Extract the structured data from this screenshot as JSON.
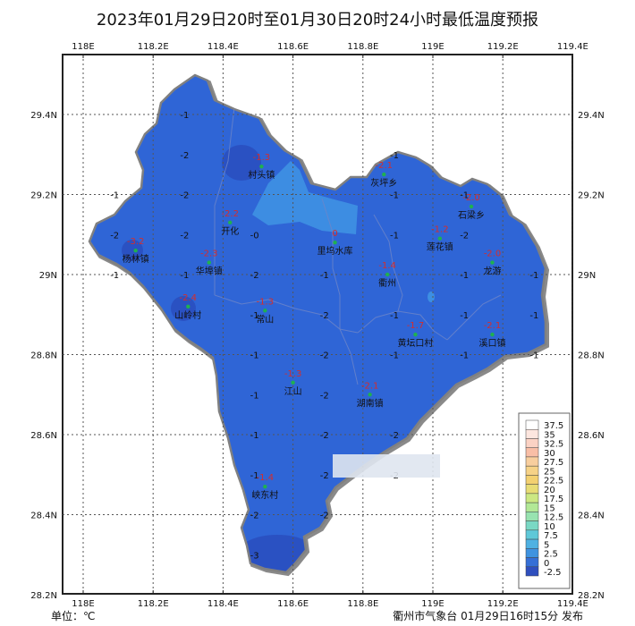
{
  "title": "2023年01月29日20时至01月30日20时24小时最低温度预报",
  "axes": {
    "lon_ticks": [
      "118E",
      "118.2E",
      "118.4E",
      "118.6E",
      "118.8E",
      "119E",
      "119.2E",
      "119.4E"
    ],
    "lat_ticks": [
      "29.4N",
      "29.2N",
      "29N",
      "28.8N",
      "28.6N",
      "28.4N",
      "28.2N"
    ]
  },
  "stations": [
    {
      "name": "村头镇",
      "value": "-1.3",
      "lon": 118.51,
      "lat": 29.27
    },
    {
      "name": "开化",
      "value": "-2.2",
      "lon": 118.42,
      "lat": 29.13
    },
    {
      "name": "杨林镇",
      "value": "-3.2",
      "lon": 118.15,
      "lat": 29.06
    },
    {
      "name": "华埠镇",
      "value": "-2.3",
      "lon": 118.36,
      "lat": 29.03
    },
    {
      "name": "山岭村",
      "value": "-2.4",
      "lon": 118.3,
      "lat": 28.92
    },
    {
      "name": "常山",
      "value": "-1.3",
      "lon": 118.52,
      "lat": 28.91
    },
    {
      "name": "里坞水库",
      "value": "0",
      "lon": 118.72,
      "lat": 29.08
    },
    {
      "name": "灰坪乡",
      "value": "-2.1",
      "lon": 118.86,
      "lat": 29.25
    },
    {
      "name": "石梁乡",
      "value": "-2.0",
      "lon": 119.11,
      "lat": 29.17
    },
    {
      "name": "莲花镇",
      "value": "-1.2",
      "lon": 119.02,
      "lat": 29.09
    },
    {
      "name": "衢州",
      "value": "-1.4",
      "lon": 118.87,
      "lat": 29.0
    },
    {
      "name": "龙游",
      "value": "-2.0",
      "lon": 119.17,
      "lat": 29.03
    },
    {
      "name": "黄坛口村",
      "value": "-1.7",
      "lon": 118.95,
      "lat": 28.85
    },
    {
      "name": "溪口镇",
      "value": "-2.1",
      "lon": 119.17,
      "lat": 28.85
    },
    {
      "name": "江山",
      "value": "-1.3",
      "lon": 118.6,
      "lat": 28.73
    },
    {
      "name": "湖南镇",
      "value": "-2.1",
      "lon": 118.82,
      "lat": 28.7
    },
    {
      "name": "峡东村",
      "value": "-1.4",
      "lon": 118.52,
      "lat": 28.47
    }
  ],
  "grid_values": [
    {
      "value": "-1",
      "lon": 118.29,
      "lat": 29.4
    },
    {
      "value": "-2",
      "lon": 118.29,
      "lat": 29.3
    },
    {
      "value": "-1",
      "lon": 118.09,
      "lat": 29.2
    },
    {
      "value": "-2",
      "lon": 118.29,
      "lat": 29.2
    },
    {
      "value": "-2",
      "lon": 118.09,
      "lat": 29.1
    },
    {
      "value": "-2",
      "lon": 118.29,
      "lat": 29.1
    },
    {
      "value": "-0",
      "lon": 118.49,
      "lat": 29.1
    },
    {
      "value": "-1",
      "lon": 118.09,
      "lat": 29.0
    },
    {
      "value": "-1",
      "lon": 118.29,
      "lat": 29.0
    },
    {
      "value": "-2",
      "lon": 118.49,
      "lat": 29.0
    },
    {
      "value": "-1",
      "lon": 118.49,
      "lat": 28.9
    },
    {
      "value": "-1",
      "lon": 118.49,
      "lat": 28.8
    },
    {
      "value": "-1",
      "lon": 118.49,
      "lat": 28.7
    },
    {
      "value": "-1",
      "lon": 118.49,
      "lat": 28.6
    },
    {
      "value": "-1",
      "lon": 118.49,
      "lat": 28.5
    },
    {
      "value": "-2",
      "lon": 118.49,
      "lat": 28.4
    },
    {
      "value": "-3",
      "lon": 118.49,
      "lat": 28.3
    },
    {
      "value": "-1",
      "lon": 118.69,
      "lat": 29.0
    },
    {
      "value": "-2",
      "lon": 118.69,
      "lat": 28.9
    },
    {
      "value": "-2",
      "lon": 118.69,
      "lat": 28.8
    },
    {
      "value": "-2",
      "lon": 118.69,
      "lat": 28.7
    },
    {
      "value": "-2",
      "lon": 118.69,
      "lat": 28.6
    },
    {
      "value": "-2",
      "lon": 118.69,
      "lat": 28.5
    },
    {
      "value": "-2",
      "lon": 118.69,
      "lat": 28.4
    },
    {
      "value": "-1",
      "lon": 118.89,
      "lat": 29.3
    },
    {
      "value": "-1",
      "lon": 118.89,
      "lat": 29.2
    },
    {
      "value": "-1",
      "lon": 118.89,
      "lat": 29.1
    },
    {
      "value": "-1",
      "lon": 118.89,
      "lat": 28.9
    },
    {
      "value": "-1",
      "lon": 118.89,
      "lat": 28.8
    },
    {
      "value": "-2",
      "lon": 118.89,
      "lat": 28.6
    },
    {
      "value": "-2",
      "lon": 118.89,
      "lat": 28.5
    },
    {
      "value": "-1",
      "lon": 119.09,
      "lat": 29.2
    },
    {
      "value": "-2",
      "lon": 119.09,
      "lat": 29.1
    },
    {
      "value": "-1",
      "lon": 119.09,
      "lat": 29.0
    },
    {
      "value": "-1",
      "lon": 119.09,
      "lat": 28.9
    },
    {
      "value": "-1",
      "lon": 119.09,
      "lat": 28.8
    },
    {
      "value": "-1",
      "lon": 119.29,
      "lat": 29.0
    },
    {
      "value": "-1",
      "lon": 119.29,
      "lat": 28.9
    },
    {
      "value": "-1",
      "lon": 119.29,
      "lat": 28.8
    }
  ],
  "legend": {
    "labels": [
      "37.5",
      "35",
      "32.5",
      "30",
      "27.5",
      "25",
      "22.5",
      "20",
      "17.5",
      "15",
      "12.5",
      "10",
      "7.5",
      "5",
      "2.5",
      "0",
      "-2.5"
    ],
    "colors": [
      "#ffffff",
      "#fde6df",
      "#fbd2c4",
      "#f9bea6",
      "#f8ce9e",
      "#f6d287",
      "#f3d070",
      "#e8dc74",
      "#cce882",
      "#b2e896",
      "#98e3b0",
      "#7ad8c4",
      "#5fc8d8",
      "#4fb1e2",
      "#3f93e0",
      "#356fd6",
      "#2f4fbe"
    ]
  },
  "unit": "单位：℃",
  "publisher": "衢州市气象台  01月29日16时15分 发布",
  "colors": {
    "base_fill": "#2f65d6",
    "light_fill": "#3f94e4",
    "dark_fill": "#2a4fc0",
    "station_value": "#d42d2d",
    "station_dot": "#20b050",
    "grid_line": "#555555",
    "border": "#808080"
  }
}
